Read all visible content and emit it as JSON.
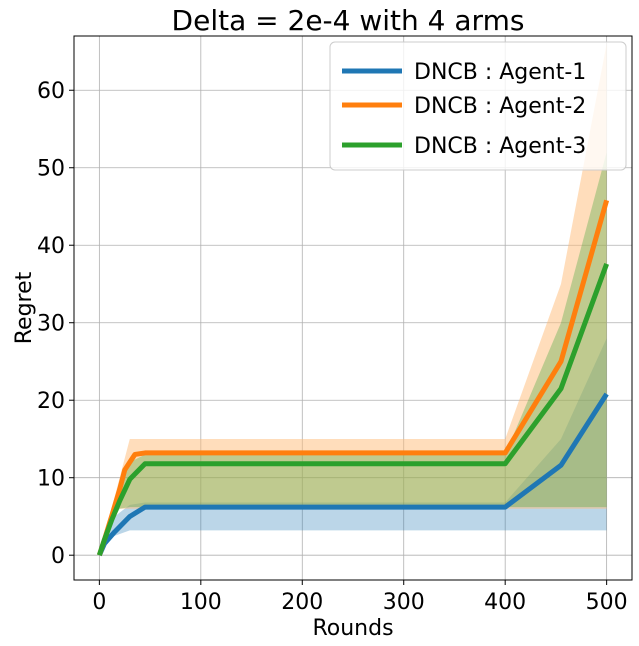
{
  "chart_data": {
    "type": "line",
    "title": "Delta = 2e-4 with 4 arms",
    "xlabel": "Rounds",
    "ylabel": "Regret",
    "xlim": [
      -25,
      525
    ],
    "ylim": [
      -3.2,
      67
    ],
    "grid": true,
    "legend_placement": "top-right",
    "x_ticks": [
      0,
      100,
      200,
      300,
      400,
      500
    ],
    "y_ticks": [
      0,
      10,
      20,
      30,
      40,
      50,
      60
    ],
    "series": [
      {
        "name": "DNCB : Agent-1",
        "color": "#1f77b4",
        "points": [
          [
            0,
            0
          ],
          [
            5,
            1.5
          ],
          [
            15,
            3
          ],
          [
            30,
            5
          ],
          [
            45,
            6.2
          ],
          [
            50,
            6.2
          ],
          [
            100,
            6.2
          ],
          [
            200,
            6.2
          ],
          [
            300,
            6.2
          ],
          [
            400,
            6.2
          ],
          [
            455,
            11.6
          ],
          [
            500,
            20.8
          ]
        ],
        "band": {
          "color": "#1f77b4",
          "lower": [
            [
              0,
              0
            ],
            [
              5,
              1.5
            ],
            [
              15,
              2.5
            ],
            [
              30,
              3.2
            ],
            [
              45,
              3.2
            ],
            [
              400,
              3.2
            ],
            [
              455,
              3.2
            ],
            [
              500,
              3.2
            ]
          ],
          "upper": [
            [
              0,
              0
            ],
            [
              5,
              1.5
            ],
            [
              15,
              5
            ],
            [
              30,
              6.5
            ],
            [
              45,
              6.8
            ],
            [
              400,
              6.8
            ],
            [
              455,
              15
            ],
            [
              500,
              28
            ]
          ]
        }
      },
      {
        "name": "DNCB : Agent-2",
        "color": "#ff7f0e",
        "points": [
          [
            0,
            0
          ],
          [
            5,
            2
          ],
          [
            12,
            5
          ],
          [
            20,
            8.5
          ],
          [
            25,
            11
          ],
          [
            35,
            13
          ],
          [
            45,
            13.2
          ],
          [
            100,
            13.2
          ],
          [
            200,
            13.2
          ],
          [
            300,
            13.2
          ],
          [
            400,
            13.2
          ],
          [
            455,
            25
          ],
          [
            500,
            45.8
          ]
        ],
        "band": {
          "color": "#ffbb78",
          "lower": [
            [
              0,
              0
            ],
            [
              5,
              2
            ],
            [
              12,
              5
            ],
            [
              20,
              6
            ],
            [
              35,
              6
            ],
            [
              45,
              6
            ],
            [
              400,
              6
            ],
            [
              455,
              6
            ],
            [
              500,
              6
            ]
          ],
          "upper": [
            [
              0,
              0
            ],
            [
              5,
              2
            ],
            [
              12,
              6
            ],
            [
              20,
              10
            ],
            [
              30,
              15
            ],
            [
              45,
              15
            ],
            [
              400,
              15
            ],
            [
              455,
              35
            ],
            [
              500,
              66
            ]
          ]
        }
      },
      {
        "name": "DNCB : Agent-3",
        "color": "#2ca02c",
        "points": [
          [
            0,
            0
          ],
          [
            5,
            2
          ],
          [
            12,
            4.5
          ],
          [
            20,
            7
          ],
          [
            30,
            9.8
          ],
          [
            45,
            11.8
          ],
          [
            50,
            11.8
          ],
          [
            100,
            11.8
          ],
          [
            200,
            11.8
          ],
          [
            300,
            11.8
          ],
          [
            400,
            11.8
          ],
          [
            455,
            21.5
          ],
          [
            500,
            37.6
          ]
        ],
        "band": {
          "color": "#2ca02c",
          "lower": [
            [
              0,
              0
            ],
            [
              5,
              2
            ],
            [
              12,
              4
            ],
            [
              20,
              6
            ],
            [
              30,
              6.2
            ],
            [
              45,
              6.2
            ],
            [
              400,
              6.2
            ],
            [
              455,
              6.2
            ],
            [
              500,
              6.2
            ]
          ],
          "upper": [
            [
              0,
              0
            ],
            [
              5,
              2
            ],
            [
              12,
              6
            ],
            [
              20,
              9
            ],
            [
              30,
              12
            ],
            [
              45,
              13
            ],
            [
              400,
              13
            ],
            [
              455,
              30
            ],
            [
              500,
              52
            ]
          ]
        }
      }
    ]
  }
}
